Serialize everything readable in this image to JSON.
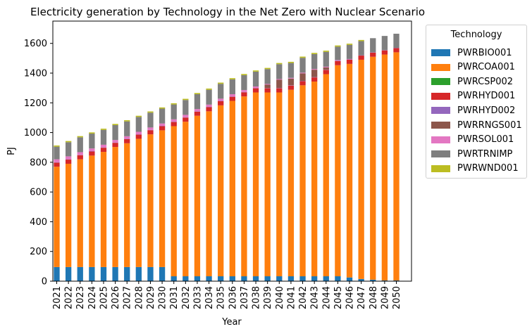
{
  "chart_data": {
    "type": "bar",
    "stacked": true,
    "title": "Electricity generation by Technology in the Net Zero with Nuclear Scenario",
    "xlabel": "Year",
    "ylabel": "PJ",
    "ylim": [
      0,
      1750
    ],
    "yticks": [
      0,
      200,
      400,
      600,
      800,
      1000,
      1200,
      1400,
      1600
    ],
    "grid": false,
    "legend": {
      "title": "Technology",
      "placement": "outside-right"
    },
    "categories": [
      "2021",
      "2022",
      "2023",
      "2024",
      "2025",
      "2026",
      "2027",
      "2028",
      "2029",
      "2030",
      "2031",
      "2032",
      "2033",
      "2034",
      "2035",
      "2036",
      "2037",
      "2038",
      "2039",
      "2040",
      "2041",
      "2042",
      "2043",
      "2044",
      "2045",
      "2046",
      "2047",
      "2048",
      "2049",
      "2050"
    ],
    "series": [
      {
        "name": "PWRBIO001",
        "color": "#1f77b4",
        "values": [
          95,
          95,
          95,
          95,
          95,
          95,
          95,
          95,
          95,
          95,
          33,
          33,
          33,
          33,
          33,
          33,
          33,
          33,
          33,
          33,
          33,
          33,
          33,
          33,
          33,
          25,
          15,
          10,
          5,
          5
        ]
      },
      {
        "name": "PWRCOA001",
        "color": "#ff7f0e",
        "values": [
          675,
          695,
          725,
          750,
          775,
          808,
          833,
          863,
          893,
          920,
          1010,
          1040,
          1080,
          1110,
          1150,
          1180,
          1210,
          1237,
          1237,
          1237,
          1255,
          1285,
          1310,
          1360,
          1420,
          1437,
          1475,
          1500,
          1520,
          1535
        ]
      },
      {
        "name": "PWRCSP002",
        "color": "#2ca02c",
        "values": [
          0,
          0,
          0,
          0,
          0,
          0,
          0,
          0,
          0,
          0,
          0,
          0,
          0,
          0,
          0,
          0,
          0,
          0,
          0,
          0,
          0,
          0,
          0,
          0,
          0,
          0,
          0,
          0,
          0,
          0
        ]
      },
      {
        "name": "PWRHYD001",
        "color": "#d62728",
        "values": [
          28,
          28,
          28,
          28,
          28,
          28,
          28,
          28,
          28,
          28,
          28,
          28,
          28,
          28,
          28,
          28,
          28,
          28,
          28,
          28,
          28,
          28,
          28,
          28,
          28,
          28,
          28,
          28,
          28,
          28
        ]
      },
      {
        "name": "PWRHYD002",
        "color": "#9467bd",
        "values": [
          2,
          2,
          2,
          2,
          2,
          2,
          2,
          2,
          2,
          2,
          2,
          2,
          2,
          2,
          2,
          2,
          2,
          2,
          2,
          2,
          2,
          2,
          2,
          2,
          2,
          2,
          2,
          2,
          2,
          2
        ]
      },
      {
        "name": "PWRRNGS001",
        "color": "#8c564b",
        "values": [
          0,
          0,
          0,
          0,
          0,
          0,
          0,
          0,
          0,
          0,
          0,
          0,
          0,
          0,
          0,
          0,
          0,
          0,
          22,
          55,
          45,
          50,
          50,
          15,
          0,
          0,
          0,
          0,
          0,
          0
        ]
      },
      {
        "name": "PWRSOL001",
        "color": "#e377c2",
        "values": [
          20,
          20,
          18,
          18,
          18,
          17,
          17,
          17,
          16,
          16,
          16,
          16,
          15,
          15,
          15,
          15,
          13,
          10,
          5,
          5,
          5,
          5,
          5,
          5,
          5,
          3,
          0,
          0,
          0,
          0
        ]
      },
      {
        "name": "PWRTRNIMP",
        "color": "#7f7f7f",
        "values": [
          85,
          95,
          100,
          100,
          100,
          100,
          100,
          100,
          100,
          100,
          100,
          100,
          100,
          100,
          100,
          100,
          100,
          100,
          100,
          100,
          100,
          100,
          100,
          100,
          90,
          95,
          95,
          95,
          95,
          95
        ]
      },
      {
        "name": "PWRWND001",
        "color": "#bcbd22",
        "values": [
          8,
          8,
          8,
          8,
          8,
          8,
          8,
          8,
          8,
          8,
          8,
          8,
          8,
          8,
          8,
          8,
          8,
          8,
          8,
          8,
          8,
          8,
          8,
          8,
          8,
          8,
          8,
          0,
          0,
          0
        ]
      }
    ]
  }
}
